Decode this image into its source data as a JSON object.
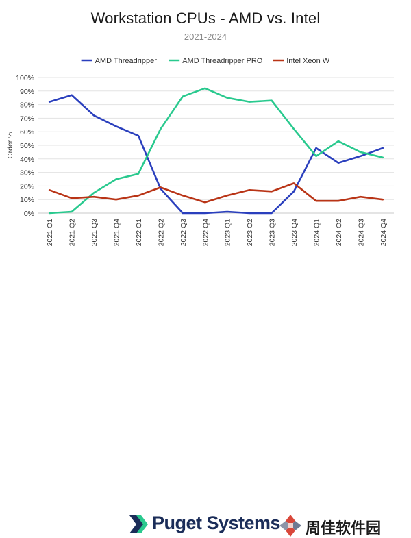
{
  "title": "Workstation CPUs - AMD vs. Intel",
  "subtitle": "2021-2024",
  "brand": {
    "name": "Puget Systems",
    "watermark": "周佳软件园"
  },
  "colors": {
    "amd": "#2a3fbd",
    "amd_pro": "#29c98e",
    "intel": "#b93416",
    "grid": "#e3e3e3",
    "axis": "#c8c8c8"
  },
  "chart_data": {
    "type": "line",
    "title": "Workstation CPUs - AMD vs. Intel",
    "subtitle": "2021-2024",
    "xlabel": "",
    "ylabel": "Order %",
    "ylim": [
      0,
      100
    ],
    "yticks": [
      "0%",
      "10%",
      "20%",
      "30%",
      "40%",
      "50%",
      "60%",
      "70%",
      "80%",
      "90%",
      "100%"
    ],
    "grid": true,
    "legend": "top-center",
    "categories": [
      "2021 Q1",
      "2021 Q2",
      "2021 Q3",
      "2021 Q4",
      "2022 Q1",
      "2022 Q2",
      "2022 Q3",
      "2022 Q4",
      "2023 Q1",
      "2023 Q2",
      "2023 Q3",
      "2023 Q4",
      "2024 Q1",
      "2024 Q2",
      "2024 Q3",
      "2024 Q4"
    ],
    "series": [
      {
        "name": "AMD Threadripper",
        "color": "#2a3fbd",
        "values": [
          82,
          87,
          72,
          64,
          57,
          18,
          0,
          0,
          1,
          0,
          0,
          16,
          48,
          37,
          42,
          48
        ]
      },
      {
        "name": "AMD Threadripper PRO",
        "color": "#29c98e",
        "values": [
          0,
          1,
          15,
          25,
          29,
          62,
          86,
          92,
          85,
          82,
          83,
          62,
          42,
          53,
          45,
          41
        ]
      },
      {
        "name": "Intel Xeon W",
        "color": "#b93416",
        "values": [
          17,
          11,
          12,
          10,
          13,
          19,
          13,
          8,
          13,
          17,
          16,
          22,
          9,
          9,
          12,
          10
        ]
      }
    ]
  }
}
